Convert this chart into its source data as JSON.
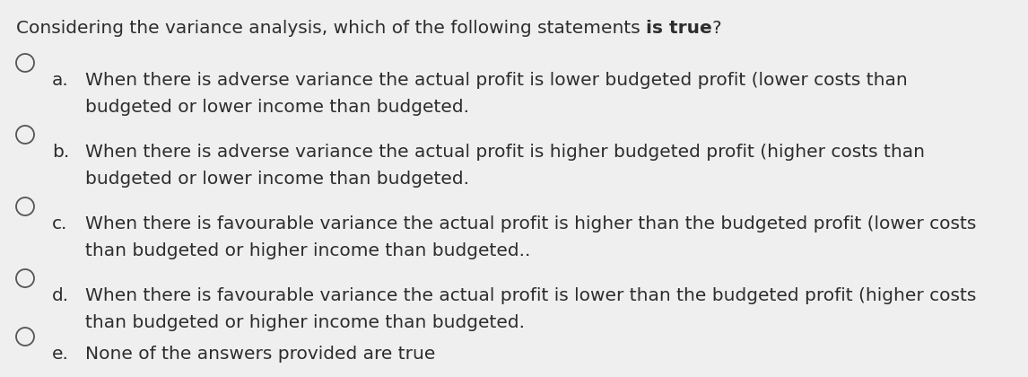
{
  "background_color": "#efefef",
  "title_normal": "Considering the variance analysis, which of the following statements ",
  "title_bold": "is true",
  "title_end": "?",
  "title_fontsize": 14.5,
  "option_fontsize": 14.5,
  "options": [
    {
      "label": "a.",
      "line1": "When there is adverse variance the actual profit is lower budgeted profit (lower costs than",
      "line2": "budgeted or lower income than budgeted."
    },
    {
      "label": "b.",
      "line1": "When there is adverse variance the actual profit is higher budgeted profit (higher costs than",
      "line2": "budgeted or lower income than budgeted."
    },
    {
      "label": "c.",
      "line1": "When there is favourable variance the actual profit is higher than the budgeted profit (lower costs",
      "line2": "than budgeted or higher income than budgeted.."
    },
    {
      "label": "d.",
      "line1": "When there is favourable variance the actual profit is lower than the budgeted profit (higher costs",
      "line2": "than budgeted or higher income than budgeted."
    },
    {
      "label": "e.",
      "line1": "None of the answers provided are true",
      "line2": ""
    }
  ],
  "text_color": "#2d2d2d",
  "circle_color": "#555555",
  "figsize": [
    11.46,
    4.2
  ],
  "dpi": 100
}
